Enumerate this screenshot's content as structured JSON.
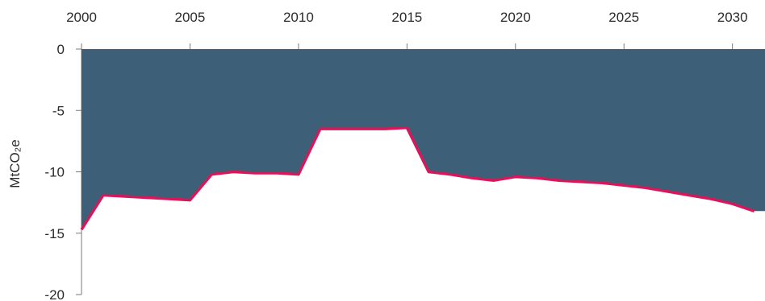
{
  "chart_data": {
    "type": "area",
    "ylabel": "MtCO₂e",
    "x_axis_position": "top",
    "x_ticks": [
      "2000",
      "2005",
      "2010",
      "2015",
      "2020",
      "2025",
      "2030"
    ],
    "y_ticks": [
      "0",
      "-5",
      "-10",
      "-15",
      "-20"
    ],
    "xlim": [
      2000,
      2031.5
    ],
    "ylim": [
      -20,
      0
    ],
    "colors": {
      "fill": "#3d5f78",
      "line": "#d6185b",
      "axis": "#7a7a7a",
      "text": "#2b2b2b"
    },
    "x": [
      2000,
      2001,
      2002,
      2003,
      2004,
      2005,
      2006,
      2007,
      2008,
      2009,
      2010,
      2011,
      2012,
      2013,
      2014,
      2015,
      2016,
      2017,
      2018,
      2019,
      2020,
      2021,
      2022,
      2023,
      2024,
      2025,
      2026,
      2027,
      2028,
      2029,
      2030,
      2031
    ],
    "values": [
      -14.7,
      -11.9,
      -12.0,
      -12.1,
      -12.2,
      -12.3,
      -10.2,
      -10.0,
      -10.1,
      -10.1,
      -10.2,
      -6.5,
      -6.5,
      -6.5,
      -6.5,
      -6.4,
      -10.0,
      -10.2,
      -10.5,
      -10.7,
      -10.4,
      -10.5,
      -10.7,
      -10.8,
      -10.9,
      -11.1,
      -11.3,
      -11.6,
      -11.9,
      -12.2,
      -12.6,
      -13.2
    ]
  }
}
